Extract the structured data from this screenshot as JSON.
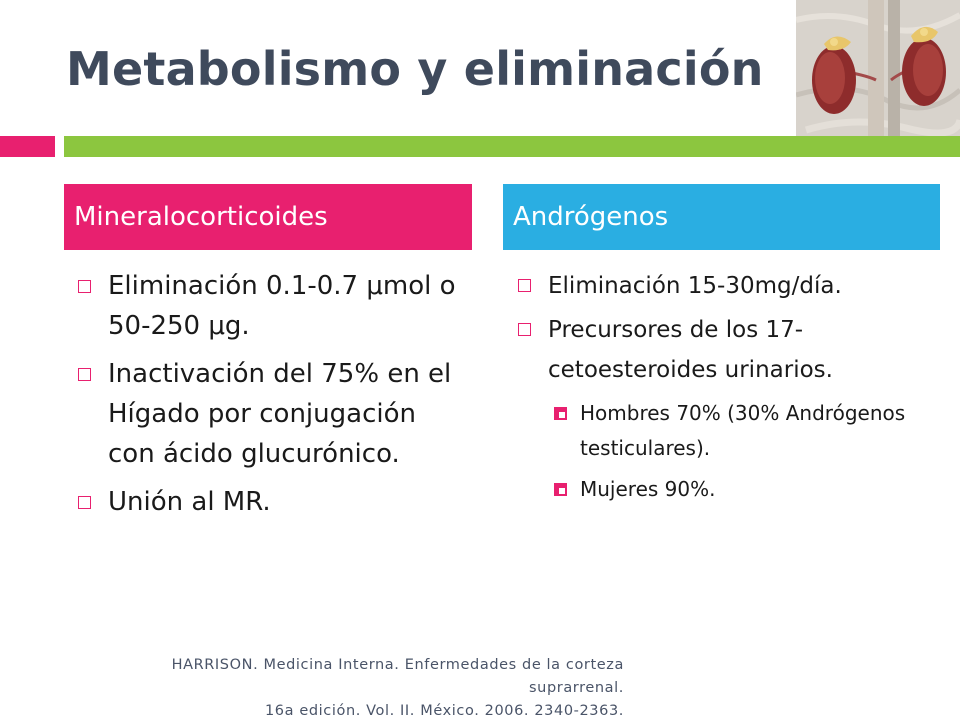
{
  "slide": {
    "title": "Metabolismo y eliminación"
  },
  "columns": {
    "left": {
      "header": "Mineralocorticoides",
      "items": [
        {
          "text": "Eliminación 0.1-0.7 μmol o 50-250 μg."
        },
        {
          "text": "Inactivación del 75% en el Hígado por conjugación con ácido glucurónico."
        },
        {
          "text": "Unión al MR."
        }
      ]
    },
    "right": {
      "header": "Andrógenos",
      "items": [
        {
          "text": "Eliminación 15-30mg/día."
        },
        {
          "text": "Precursores de los 17-cetoesteroides urinarios."
        }
      ],
      "subitems": [
        {
          "text": "Hombres 70%  (30% Andrógenos testiculares)."
        },
        {
          "text": "Mujeres 90%."
        }
      ]
    }
  },
  "citation": {
    "line1": "HARRISON. Medicina Interna. Enfermedades de la corteza suprarrenal.",
    "line2": "16a edición. Vol. II. México. 2006. 2340-2363."
  },
  "colors": {
    "accent_pink": "#e8206f",
    "accent_green": "#8cc63f",
    "accent_blue": "#2aaee2",
    "title_gray": "#3f4a5c"
  },
  "images": {
    "kidney": "kidney-adrenal-anatomy-illustration"
  }
}
